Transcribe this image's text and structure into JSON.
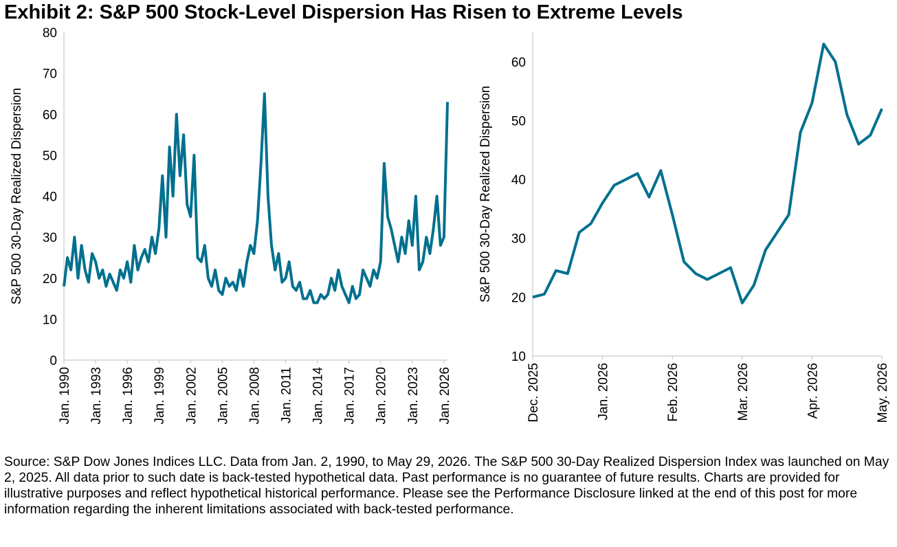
{
  "title": "Exhibit 2: S&P 500 Stock-Level Dispersion Has Risen to Extreme Levels",
  "note": "Source: S&P Dow Jones Indices LLC.  Data from Jan. 2, 1990, to May 29, 2026. The S&P 500 30-Day Realized Dispersion Index was launched on May 2, 2025. All data prior to such date is back-tested hypothetical data. Past performance is no guarantee of future results. Charts are provided for illustrative purposes and reflect hypothetical historical performance. Please see the Performance Disclosure linked at the end of this post for more information regarding the inherent limitations associated with back-tested performance.",
  "chart_data": [
    {
      "type": "line",
      "y_label": "S&P 500 30-Day Realized Dispersion",
      "color": "#00708e",
      "categories": [
        "Jan. 1990",
        null,
        null,
        null,
        null,
        null,
        null,
        null,
        null,
        "Jan. 1993",
        null,
        null,
        null,
        null,
        null,
        null,
        null,
        null,
        "Jan. 1996",
        null,
        null,
        null,
        null,
        null,
        null,
        null,
        null,
        "Jan. 1999",
        null,
        null,
        null,
        null,
        null,
        null,
        null,
        null,
        "Jan. 2002",
        null,
        null,
        null,
        null,
        null,
        null,
        null,
        null,
        "Jan. 2005",
        null,
        null,
        null,
        null,
        null,
        null,
        null,
        null,
        "Jan. 2008",
        null,
        null,
        null,
        null,
        null,
        null,
        null,
        null,
        "Jan. 2011",
        null,
        null,
        null,
        null,
        null,
        null,
        null,
        null,
        "Jan. 2014",
        null,
        null,
        null,
        null,
        null,
        null,
        null,
        null,
        "Jan. 2017",
        null,
        null,
        null,
        null,
        null,
        null,
        null,
        null,
        "Jan. 2020",
        null,
        null,
        null,
        null,
        null,
        null,
        null,
        null,
        "Jan. 2023",
        null,
        null,
        null,
        null,
        null,
        null,
        null,
        null,
        "Jan. 2026",
        null
      ],
      "values": [
        18,
        25,
        22,
        30,
        20,
        28,
        22,
        19,
        26,
        24,
        20,
        22,
        18,
        21,
        19,
        17,
        22,
        20,
        24,
        19,
        28,
        22,
        25,
        27,
        24,
        30,
        26,
        32,
        45,
        30,
        52,
        40,
        60,
        45,
        55,
        38,
        35,
        50,
        25,
        24,
        28,
        20,
        18,
        22,
        17,
        16,
        20,
        18,
        19,
        17,
        22,
        18,
        24,
        28,
        26,
        34,
        48,
        65,
        40,
        28,
        22,
        26,
        19,
        20,
        24,
        18,
        17,
        19,
        15,
        15,
        17,
        14,
        14,
        16,
        15,
        16,
        20,
        17,
        22,
        18,
        16,
        14,
        18,
        15,
        16,
        22,
        20,
        18,
        22,
        20,
        24,
        48,
        35,
        32,
        28,
        24,
        30,
        26,
        34,
        28,
        40,
        22,
        24,
        30,
        26,
        32,
        40,
        28,
        30,
        63
      ],
      "ylim": [
        0,
        80
      ],
      "yticks": [
        0,
        10,
        20,
        30,
        40,
        50,
        60,
        70,
        80
      ]
    },
    {
      "type": "line",
      "y_label": "S&P 500 30-Day Realized Dispersion",
      "color": "#00708e",
      "categories": [
        "Dec. 2025",
        null,
        null,
        null,
        null,
        null,
        "Jan. 2026",
        null,
        null,
        null,
        null,
        null,
        "Feb. 2026",
        null,
        null,
        null,
        null,
        null,
        "Mar. 2026",
        null,
        null,
        null,
        null,
        null,
        "Apr. 2026",
        null,
        null,
        null,
        null,
        null,
        "May. 2026"
      ],
      "values": [
        20,
        20.5,
        24.5,
        24,
        31,
        32.5,
        36,
        39,
        40,
        41,
        37,
        41.5,
        34,
        26,
        24,
        23,
        24,
        25,
        19,
        22,
        28,
        31,
        34,
        48,
        53,
        63,
        60,
        51,
        46,
        47.5,
        52
      ],
      "ylim": [
        10,
        65
      ],
      "yticks": [
        10,
        20,
        30,
        40,
        50,
        60
      ]
    }
  ]
}
